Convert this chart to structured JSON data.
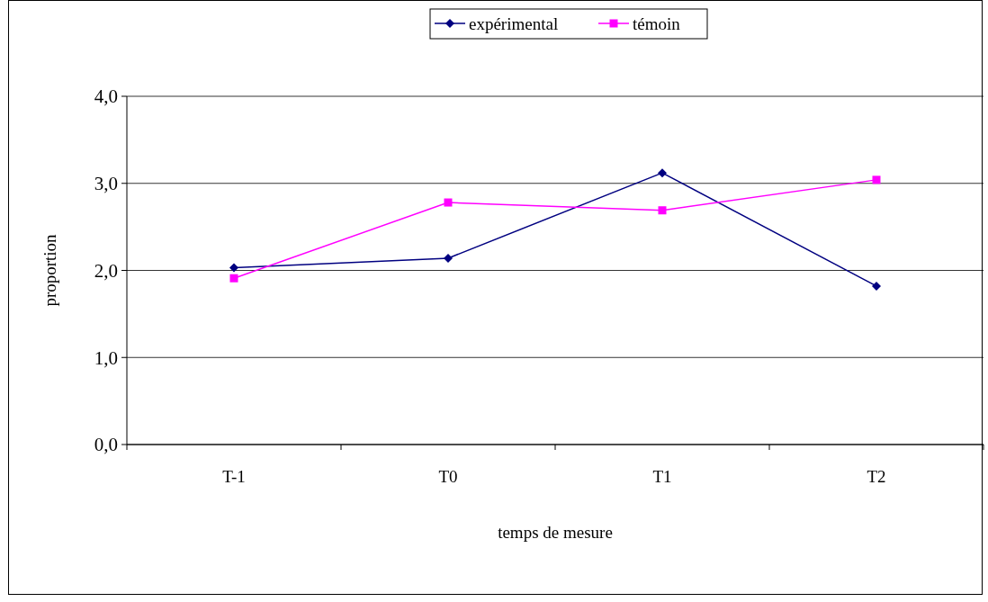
{
  "chart_data": {
    "type": "line",
    "xlabel": "temps de mesure",
    "ylabel": "proportion",
    "categories": [
      "T-1",
      "T0",
      "T1",
      "T2"
    ],
    "series": [
      {
        "name": "expérimental",
        "color": "#000080",
        "marker": "diamond",
        "values": [
          2.03,
          2.14,
          3.12,
          1.82
        ]
      },
      {
        "name": "témoin",
        "color": "#ff00ff",
        "marker": "square",
        "values": [
          1.91,
          2.78,
          2.69,
          3.04
        ]
      }
    ],
    "ylim": [
      0,
      4
    ],
    "yticks": [
      {
        "value": 0,
        "label": "0,0"
      },
      {
        "value": 1,
        "label": "1,0"
      },
      {
        "value": 2,
        "label": "2,0"
      },
      {
        "value": 3,
        "label": "3,0"
      },
      {
        "value": 4,
        "label": "4,0"
      }
    ],
    "grid": "y",
    "legend": "top"
  }
}
